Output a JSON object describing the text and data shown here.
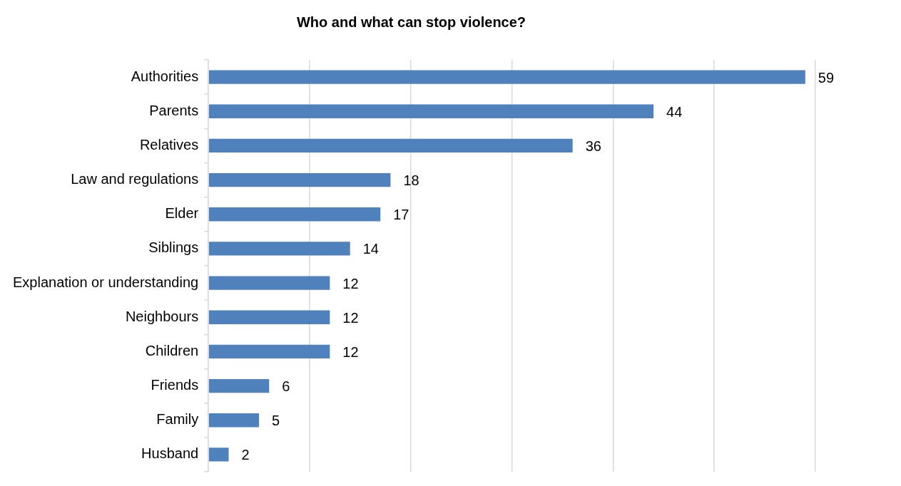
{
  "chart_data": {
    "type": "bar",
    "orientation": "horizontal",
    "title": "Who and what can stop violence?",
    "categories": [
      "Authorities",
      "Parents",
      "Relatives",
      "Law and regulations",
      "Elder",
      "Siblings",
      "Explanation or understanding",
      "Neighbours",
      "Children",
      "Friends",
      "Family",
      "Husband"
    ],
    "values": [
      59,
      44,
      36,
      18,
      17,
      14,
      12,
      12,
      12,
      6,
      5,
      2
    ],
    "color": "#4f81bd",
    "data_labels": true,
    "xlim": [
      0,
      60
    ],
    "xticks": [
      {
        "value": 0,
        "label": null
      },
      {
        "value": 10,
        "label": null
      },
      {
        "value": 20,
        "label": null
      },
      {
        "value": 30,
        "label": null
      },
      {
        "value": 40,
        "label": null
      },
      {
        "value": 50,
        "label": null
      },
      {
        "value": 60,
        "label": null
      }
    ],
    "grid": "x",
    "tick_labels": "y"
  }
}
